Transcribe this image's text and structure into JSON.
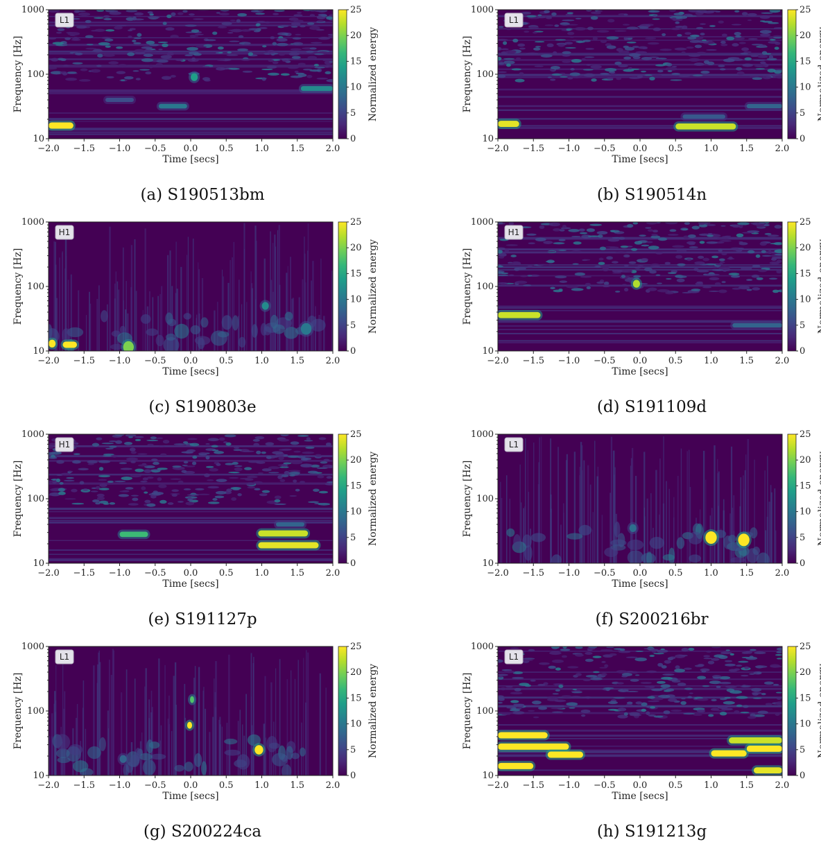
{
  "chart_data": [
    {
      "type": "heatmap",
      "subplot": "(a)",
      "caption": "S190513bm",
      "detector": "L1",
      "xlabel": "Time [secs]",
      "ylabel": "Frequency [Hz]",
      "colorbar_label": "Normalized energy",
      "xlim": [
        -2.0,
        2.0
      ],
      "ylim": [
        10,
        1000
      ],
      "yscale": "log",
      "clim": [
        0,
        25
      ],
      "xticks": [
        "−2.0",
        "−1.5",
        "−1.0",
        "−0.5",
        "0.0",
        "0.5",
        "1.0",
        "1.5",
        "2.0"
      ],
      "yticks": [
        "10",
        "100",
        "1000"
      ],
      "cbar_ticks": [
        "0",
        "5",
        "10",
        "15",
        "20",
        "25"
      ],
      "background": "noise",
      "features": [
        {
          "t0": -2.0,
          "t1": -1.65,
          "f": 16,
          "energy": 25
        },
        {
          "t0": -0.45,
          "t1": -0.05,
          "f": 32,
          "energy": 10
        },
        {
          "t0": 0.0,
          "t1": 0.1,
          "f": 90,
          "energy": 14
        },
        {
          "t0": 1.55,
          "t1": 2.0,
          "f": 60,
          "energy": 12
        },
        {
          "t0": -1.2,
          "t1": -0.8,
          "f": 40,
          "energy": 6
        }
      ]
    },
    {
      "type": "heatmap",
      "subplot": "(b)",
      "caption": "S190514n",
      "detector": "L1",
      "xlabel": "Time [secs]",
      "ylabel": "Frequency [Hz]",
      "colorbar_label": "Normalized energy",
      "xlim": [
        -2.0,
        2.0
      ],
      "ylim": [
        10,
        1000
      ],
      "yscale": "log",
      "clim": [
        0,
        25
      ],
      "xticks": [
        "−2.0",
        "−1.5",
        "−1.0",
        "−0.5",
        "0.0",
        "0.5",
        "1.0",
        "1.5",
        "2.0"
      ],
      "yticks": [
        "10",
        "100",
        "1000"
      ],
      "cbar_ticks": [
        "0",
        "5",
        "10",
        "15",
        "20",
        "25"
      ],
      "background": "noise",
      "features": [
        {
          "t0": -2.0,
          "t1": -1.7,
          "f": 17,
          "energy": 24
        },
        {
          "t0": 0.5,
          "t1": 1.35,
          "f": 15.5,
          "energy": 23
        },
        {
          "t0": 0.6,
          "t1": 1.2,
          "f": 22,
          "energy": 7
        },
        {
          "t0": 1.5,
          "t1": 2.0,
          "f": 32,
          "energy": 8
        }
      ]
    },
    {
      "type": "heatmap",
      "subplot": "(c)",
      "caption": "S190803e",
      "detector": "H1",
      "xlabel": "Time [secs]",
      "ylabel": "Frequency [Hz]",
      "colorbar_label": "Normalized energy",
      "xlim": [
        -2.0,
        2.0
      ],
      "ylim": [
        10,
        1000
      ],
      "yscale": "log",
      "clim": [
        0,
        25
      ],
      "xticks": [
        "−2.0",
        "−1.5",
        "−1.0",
        "−0.5",
        "0.0",
        "0.5",
        "1.0",
        "1.5",
        "2.0"
      ],
      "yticks": [
        "10",
        "100",
        "1000"
      ],
      "cbar_ticks": [
        "0",
        "5",
        "10",
        "15",
        "20",
        "25"
      ],
      "background": "streaks",
      "features": [
        {
          "t0": -2.0,
          "t1": -1.9,
          "f": 13,
          "energy": 25
        },
        {
          "t0": -1.8,
          "t1": -1.6,
          "f": 12.5,
          "energy": 25
        },
        {
          "t0": -0.95,
          "t1": -0.8,
          "f": 11.5,
          "energy": 20
        },
        {
          "t0": 1.0,
          "t1": 1.1,
          "f": 50,
          "energy": 12
        },
        {
          "t0": 1.55,
          "t1": 1.7,
          "f": 22,
          "energy": 10
        }
      ]
    },
    {
      "type": "heatmap",
      "subplot": "(d)",
      "caption": "S191109d",
      "detector": "H1",
      "xlabel": "Time [secs]",
      "ylabel": "Frequency [Hz]",
      "colorbar_label": "Normalized energy",
      "xlim": [
        -2.0,
        2.0
      ],
      "ylim": [
        10,
        1000
      ],
      "yscale": "log",
      "clim": [
        0,
        25
      ],
      "xticks": [
        "−2.0",
        "−1.5",
        "−1.0",
        "−0.5",
        "0.0",
        "0.5",
        "1.0",
        "1.5",
        "2.0"
      ],
      "yticks": [
        "10",
        "100",
        "1000"
      ],
      "cbar_ticks": [
        "0",
        "5",
        "10",
        "15",
        "20",
        "25"
      ],
      "background": "noise",
      "features": [
        {
          "t0": -2.0,
          "t1": -1.4,
          "f": 36,
          "energy": 23
        },
        {
          "t0": -0.1,
          "t1": 0.0,
          "f": 110,
          "energy": 22
        },
        {
          "t0": 1.3,
          "t1": 2.0,
          "f": 25,
          "energy": 8
        }
      ]
    },
    {
      "type": "heatmap",
      "subplot": "(e)",
      "caption": "S191127p",
      "detector": "H1",
      "xlabel": "Time [secs]",
      "ylabel": "Frequency [Hz]",
      "colorbar_label": "Normalized energy",
      "xlim": [
        -2.0,
        2.0
      ],
      "ylim": [
        10,
        1000
      ],
      "yscale": "log",
      "clim": [
        0,
        25
      ],
      "xticks": [
        "−2.0",
        "−1.5",
        "−1.0",
        "−0.5",
        "0.0",
        "0.5",
        "1.0",
        "1.5",
        "2.0"
      ],
      "yticks": [
        "10",
        "100",
        "1000"
      ],
      "cbar_ticks": [
        "0",
        "5",
        "10",
        "15",
        "20",
        "25"
      ],
      "background": "noise",
      "features": [
        {
          "t0": -1.0,
          "t1": -0.6,
          "f": 28,
          "energy": 17
        },
        {
          "t0": 0.95,
          "t1": 1.65,
          "f": 29,
          "energy": 23
        },
        {
          "t0": 0.95,
          "t1": 1.8,
          "f": 19,
          "energy": 24
        },
        {
          "t0": 1.2,
          "t1": 1.6,
          "f": 40,
          "energy": 8
        }
      ]
    },
    {
      "type": "heatmap",
      "subplot": "(f)",
      "caption": "S200216br",
      "detector": "L1",
      "xlabel": "Time [secs]",
      "ylabel": "Frequency [Hz]",
      "colorbar_label": "Normalized energy",
      "xlim": [
        -2.0,
        2.0
      ],
      "ylim": [
        10,
        1000
      ],
      "yscale": "log",
      "clim": [
        0,
        25
      ],
      "xticks": [
        "−2.0",
        "−1.5",
        "−1.0",
        "−0.5",
        "0.0",
        "0.5",
        "1.0",
        "1.5",
        "2.0"
      ],
      "yticks": [
        "10",
        "100",
        "1000"
      ],
      "cbar_ticks": [
        "0",
        "5",
        "10",
        "15",
        "20",
        "25"
      ],
      "background": "streaks",
      "features": [
        {
          "t0": 0.92,
          "t1": 1.08,
          "f": 25,
          "energy": 25
        },
        {
          "t0": 1.38,
          "t1": 1.54,
          "f": 23,
          "energy": 25
        },
        {
          "t0": -0.15,
          "t1": -0.05,
          "f": 35,
          "energy": 9
        }
      ]
    },
    {
      "type": "heatmap",
      "subplot": "(g)",
      "caption": "S200224ca",
      "detector": "L1",
      "xlabel": "Time [secs]",
      "ylabel": "Frequency [Hz]",
      "colorbar_label": "Normalized energy",
      "xlim": [
        -2.0,
        2.0
      ],
      "ylim": [
        10,
        1000
      ],
      "yscale": "log",
      "clim": [
        0,
        25
      ],
      "xticks": [
        "−2.0",
        "−1.5",
        "−1.0",
        "−0.5",
        "0.0",
        "0.5",
        "1.0",
        "1.5",
        "2.0"
      ],
      "yticks": [
        "10",
        "100",
        "1000"
      ],
      "cbar_ticks": [
        "0",
        "5",
        "10",
        "15",
        "20",
        "25"
      ],
      "background": "streaks",
      "features": [
        {
          "t0": -0.05,
          "t1": 0.02,
          "f": 60,
          "energy": 25
        },
        {
          "t0": -0.01,
          "t1": 0.03,
          "f": 150,
          "energy": 18
        },
        {
          "t0": 0.9,
          "t1": 1.02,
          "f": 25,
          "energy": 25
        },
        {
          "t0": -1.0,
          "t1": -0.9,
          "f": 18,
          "energy": 8
        }
      ]
    },
    {
      "type": "heatmap",
      "subplot": "(h)",
      "caption": "S191213g",
      "detector": "L1",
      "xlabel": "Time [secs]",
      "ylabel": "Frequency [Hz]",
      "colorbar_label": "Normalized energy",
      "xlim": [
        -2.0,
        2.0
      ],
      "ylim": [
        10,
        1000
      ],
      "yscale": "log",
      "clim": [
        0,
        25
      ],
      "xticks": [
        "−2.0",
        "−1.5",
        "−1.0",
        "−0.5",
        "0.0",
        "0.5",
        "1.0",
        "1.5",
        "2.0"
      ],
      "yticks": [
        "10",
        "100",
        "1000"
      ],
      "cbar_ticks": [
        "0",
        "5",
        "10",
        "15",
        "20",
        "25"
      ],
      "background": "noise",
      "features": [
        {
          "t0": -2.0,
          "t1": -1.3,
          "f": 42,
          "energy": 25
        },
        {
          "t0": -2.0,
          "t1": -1.0,
          "f": 28,
          "energy": 25
        },
        {
          "t0": -1.3,
          "t1": -0.8,
          "f": 21,
          "energy": 25
        },
        {
          "t0": -2.0,
          "t1": -1.5,
          "f": 14,
          "energy": 25
        },
        {
          "t0": 1.0,
          "t1": 1.5,
          "f": 22,
          "energy": 25
        },
        {
          "t0": 1.5,
          "t1": 2.0,
          "f": 26,
          "energy": 25
        },
        {
          "t0": 1.25,
          "t1": 2.0,
          "f": 35,
          "energy": 23
        },
        {
          "t0": 1.6,
          "t1": 2.0,
          "f": 12,
          "energy": 24
        }
      ]
    }
  ],
  "colors": {
    "viridis": [
      "#440154",
      "#482878",
      "#3e4989",
      "#31688e",
      "#26828e",
      "#1f9e89",
      "#35b779",
      "#6ece58",
      "#b5de2b",
      "#fde725"
    ]
  }
}
